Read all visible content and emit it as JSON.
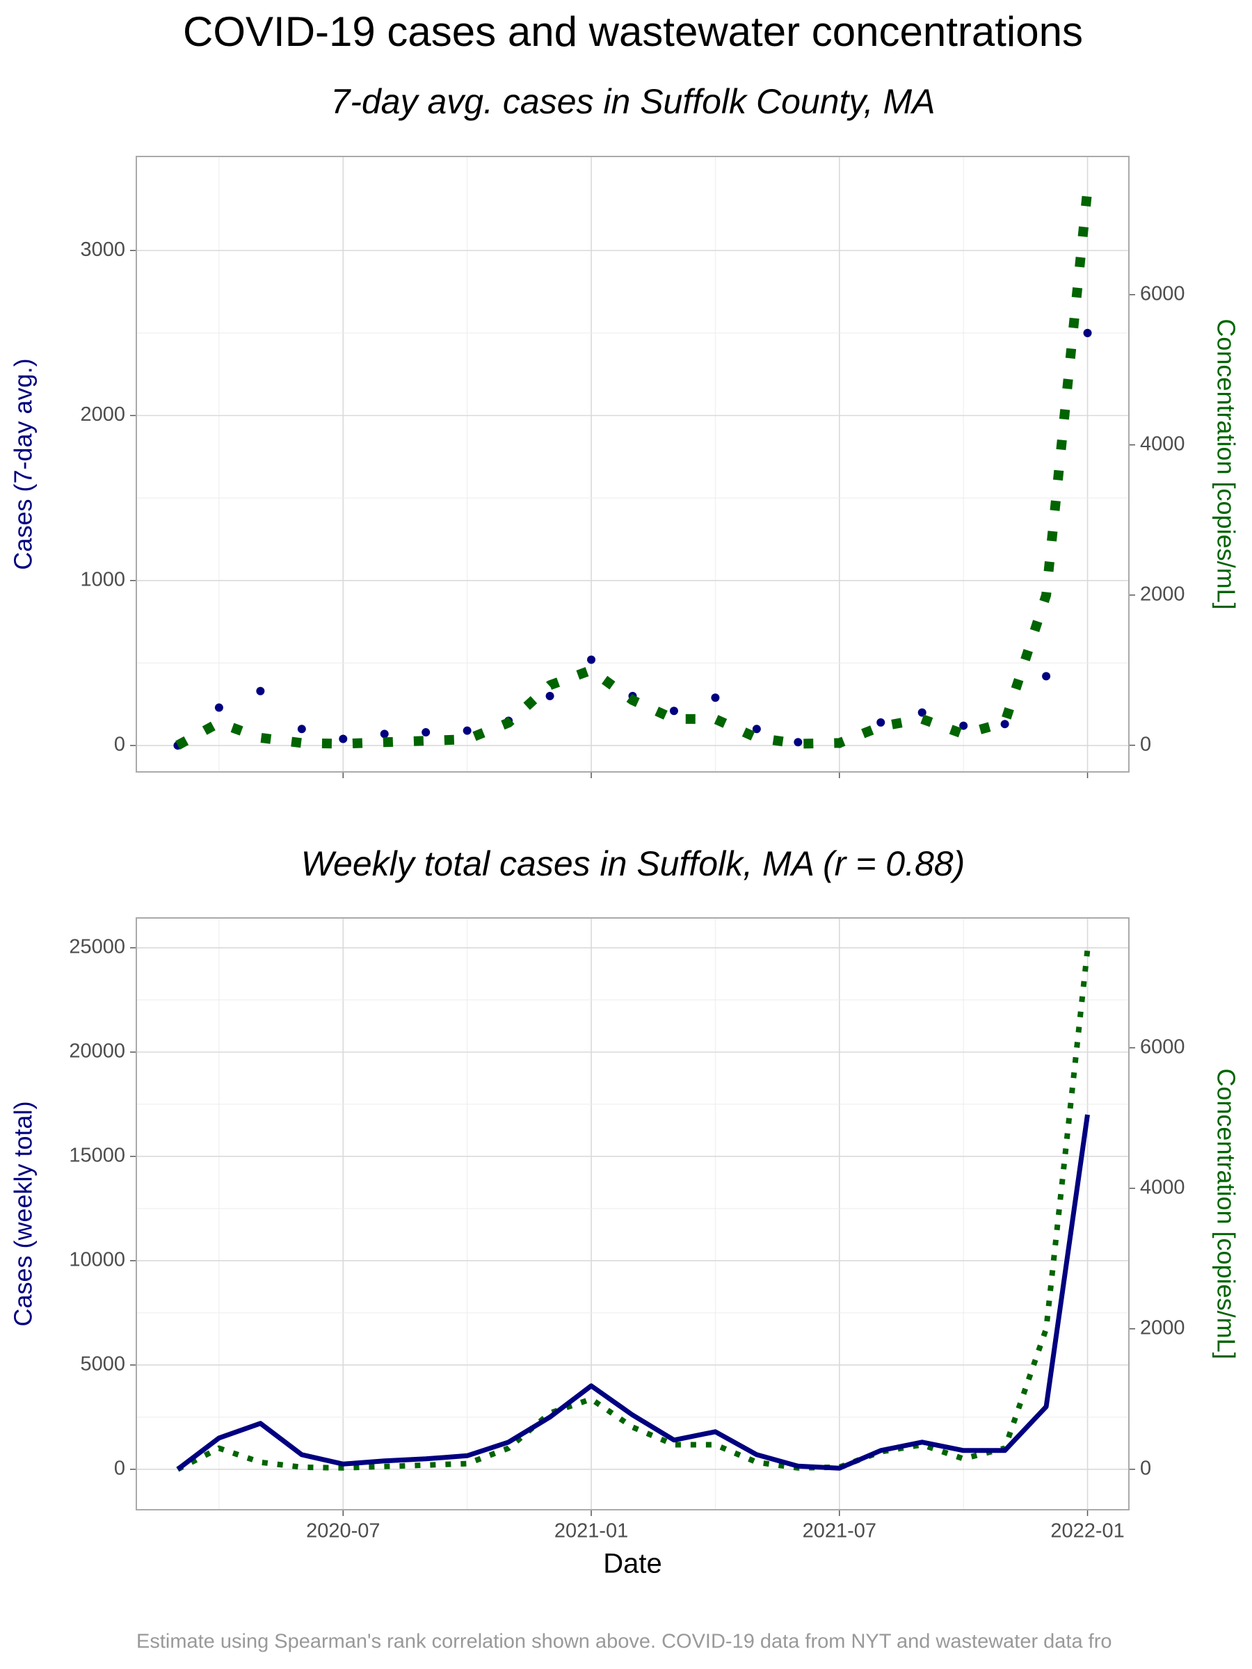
{
  "title": "COVID-19 cases and wastewater concentrations",
  "note": "Estimate using Spearman's rank correlation shown above. COVID-19 data from NYT and wastewater data fro",
  "chart_data": [
    {
      "type": "line",
      "subtitle": "7-day  avg. cases in Suffolk County, MA",
      "ylabel": "Cases (7-day avg.)",
      "y2label": "Concentration [copies/mL]",
      "x": [
        "2020-03",
        "2020-04",
        "2020-05",
        "2020-06",
        "2020-07",
        "2020-08",
        "2020-09",
        "2020-10",
        "2020-11",
        "2020-12",
        "2021-01",
        "2021-02",
        "2021-03",
        "2021-04",
        "2021-05",
        "2021-06",
        "2021-07",
        "2021-08",
        "2021-09",
        "2021-10",
        "2021-11",
        "2021-12",
        "2022-01"
      ],
      "xlim": [
        "2020-02",
        "2022-02"
      ],
      "xticks": [
        "2020-07",
        "2021-01",
        "2021-07",
        "2022-01"
      ],
      "show_xtick_labels": false,
      "ylim": [
        -160,
        3570
      ],
      "yticks": [
        0,
        1000,
        2000,
        3000
      ],
      "y2lim": [
        -355,
        7840
      ],
      "y2ticks": [
        0,
        2000,
        4000,
        6000
      ],
      "grid": true,
      "series": [
        {
          "color": "#000080",
          "style": "points",
          "values": [
            0,
            230,
            330,
            100,
            40,
            70,
            80,
            90,
            150,
            300,
            520,
            300,
            210,
            290,
            100,
            20,
            10,
            140,
            200,
            120,
            130,
            420,
            2500
          ]
        },
        {
          "color": "#006400",
          "style": "dotted",
          "axis": "y2",
          "values": [
            0,
            300,
            100,
            30,
            20,
            40,
            60,
            80,
            300,
            800,
            1000,
            600,
            350,
            350,
            100,
            20,
            30,
            250,
            350,
            150,
            300,
            2000,
            7400
          ]
        }
      ]
    },
    {
      "type": "line",
      "subtitle": "Weekly total cases in Suffolk, MA (r = 0.88)",
      "xlabel": "Date",
      "ylabel": "Cases (weekly total)",
      "y2label": "Concentration [copies/mL]",
      "x": [
        "2020-03",
        "2020-04",
        "2020-05",
        "2020-06",
        "2020-07",
        "2020-08",
        "2020-09",
        "2020-10",
        "2020-11",
        "2020-12",
        "2021-01",
        "2021-02",
        "2021-03",
        "2021-04",
        "2021-05",
        "2021-06",
        "2021-07",
        "2021-08",
        "2021-09",
        "2021-10",
        "2021-11",
        "2021-12",
        "2022-01"
      ],
      "xlim": [
        "2020-02",
        "2022-02"
      ],
      "xticks": [
        "2020-07",
        "2021-01",
        "2021-07",
        "2022-01"
      ],
      "show_xtick_labels": true,
      "ylim": [
        -1940,
        26430
      ],
      "yticks": [
        0,
        5000,
        10000,
        15000,
        20000,
        25000
      ],
      "y2lim": [
        -576,
        7848
      ],
      "y2ticks": [
        0,
        2000,
        4000,
        6000
      ],
      "grid": true,
      "series": [
        {
          "color": "#006400",
          "style": "dotted",
          "axis": "y2",
          "values": [
            0,
            300,
            100,
            30,
            20,
            40,
            60,
            80,
            300,
            800,
            1000,
            600,
            350,
            350,
            100,
            20,
            30,
            250,
            350,
            150,
            300,
            2000,
            7400
          ]
        },
        {
          "color": "#000080",
          "style": "solid",
          "values": [
            0,
            1500,
            2200,
            700,
            250,
            400,
            500,
            650,
            1300,
            2500,
            4000,
            2600,
            1400,
            1800,
            700,
            150,
            50,
            900,
            1300,
            900,
            900,
            3000,
            17000
          ]
        }
      ]
    }
  ]
}
